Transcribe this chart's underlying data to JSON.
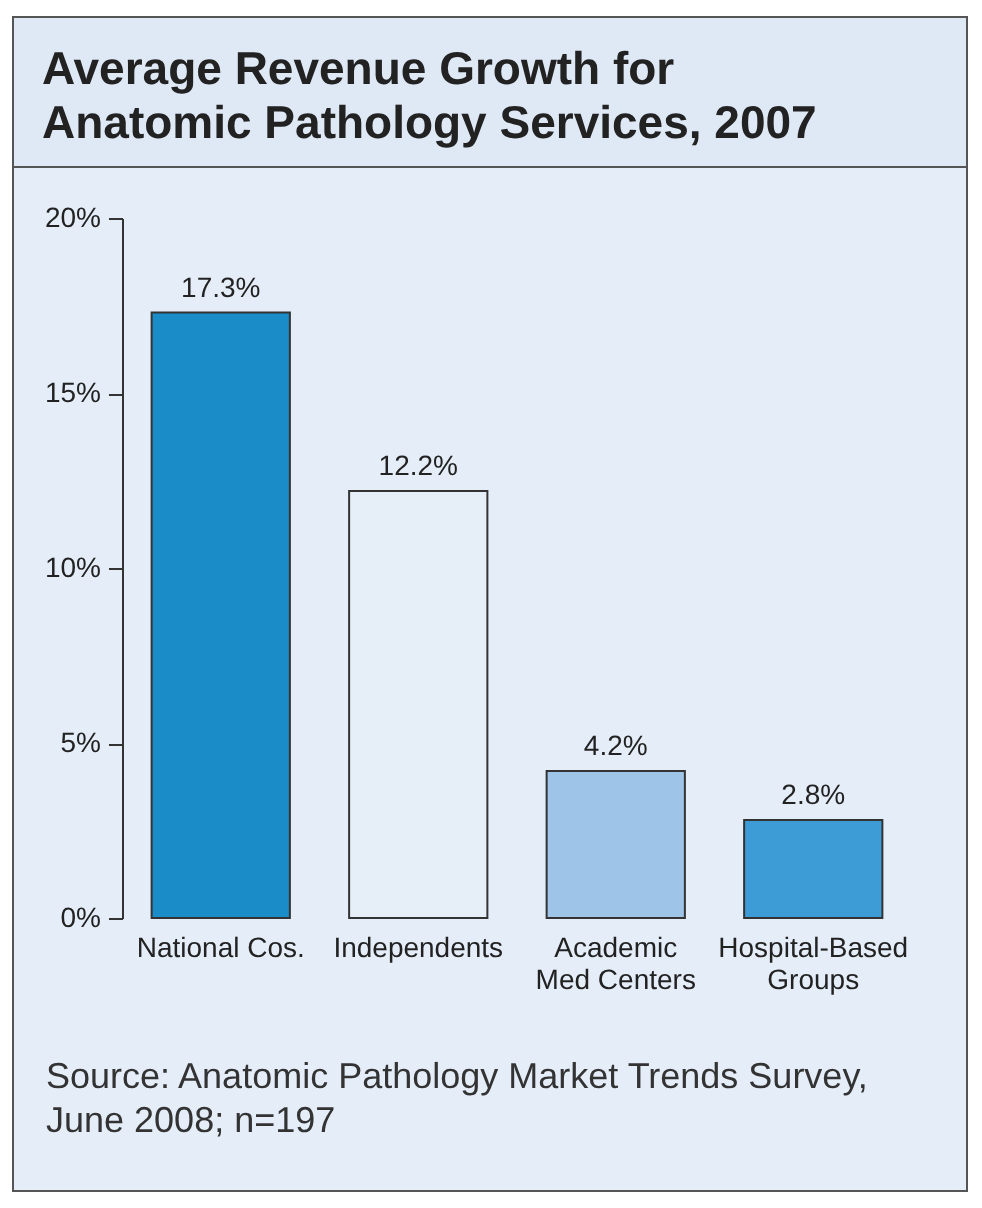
{
  "chart_data": {
    "type": "bar",
    "title": "Average Revenue Growth for Anatomic Pathology Services, 2007",
    "categories": [
      "National Cos.",
      "Independents",
      "Academic Med Centers",
      "Hospital-Based Groups"
    ],
    "values": [
      17.3,
      12.2,
      4.2,
      2.8
    ],
    "colors": [
      "#1a8cc8",
      "#e6eff8",
      "#9ec5e8",
      "#3d9bd5"
    ],
    "value_labels": [
      "17.3%",
      "12.2%",
      "4.2%",
      "2.8%"
    ],
    "ylim": [
      0,
      20
    ],
    "yticks": [
      {
        "value": 0,
        "label": "0%"
      },
      {
        "value": 5,
        "label": "5%"
      },
      {
        "value": 10,
        "label": "10%"
      },
      {
        "value": 15,
        "label": "15%"
      },
      {
        "value": 20,
        "label": "20%"
      }
    ],
    "grid": false,
    "annotations": [
      "Source: Anatomic Pathology Market Trends Survey, June 2008; n=197"
    ]
  }
}
